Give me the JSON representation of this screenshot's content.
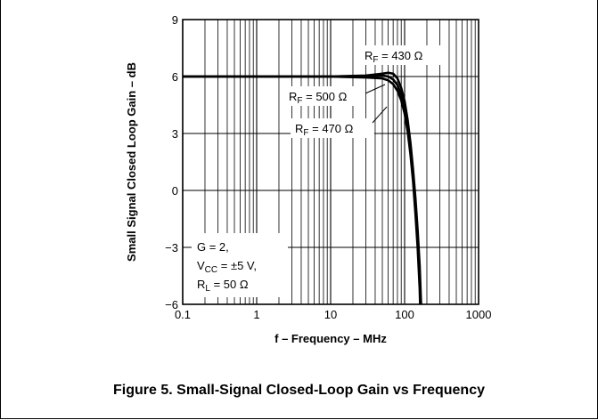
{
  "figure_caption": "Figure 5. Small-Signal Closed-Loop Gain vs Frequency",
  "colors": {
    "curve": "#000000",
    "grid": "#000000",
    "background": "#ffffff"
  },
  "chart_data": {
    "type": "line",
    "title": "",
    "xlabel": "f – Frequency – MHz",
    "ylabel": "Small Signal Closed Loop Gain – dB",
    "xscale": "log",
    "xlim": [
      0.1,
      1000
    ],
    "ylim": [
      -6,
      9
    ],
    "grid": true,
    "x_ticks": [
      {
        "value": 0.1,
        "label": "0.1"
      },
      {
        "value": 1,
        "label": "1"
      },
      {
        "value": 10,
        "label": "10"
      },
      {
        "value": 100,
        "label": "100"
      },
      {
        "value": 1000,
        "label": "1000"
      }
    ],
    "y_ticks": [
      {
        "value": 9,
        "label": "9"
      },
      {
        "value": 6,
        "label": "6"
      },
      {
        "value": 3,
        "label": "3"
      },
      {
        "value": 0,
        "label": "0"
      },
      {
        "value": -3,
        "label": "−3"
      },
      {
        "value": -6,
        "label": "−6"
      }
    ],
    "series": [
      {
        "name": "R_F = 430 Ω",
        "x": [
          0.1,
          1,
          10,
          30,
          50,
          60,
          70,
          80,
          90,
          100,
          110,
          120,
          130,
          140,
          150,
          160,
          167
        ],
        "y": [
          6,
          6,
          6,
          6.05,
          6.15,
          6.2,
          6.15,
          5.9,
          5.4,
          4.7,
          3.7,
          2.5,
          1.1,
          -0.4,
          -2.1,
          -4.0,
          -6
        ]
      },
      {
        "name": "R_F = 470 Ω",
        "x": [
          0.1,
          1,
          10,
          30,
          50,
          60,
          70,
          80,
          90,
          100,
          110,
          120,
          130,
          140,
          150,
          160,
          164
        ],
        "y": [
          6,
          6,
          6,
          6.0,
          6.05,
          6.0,
          5.85,
          5.55,
          5.05,
          4.35,
          3.4,
          2.2,
          0.8,
          -0.8,
          -2.6,
          -4.6,
          -6
        ]
      },
      {
        "name": "R_F = 500 Ω",
        "x": [
          0.1,
          1,
          10,
          30,
          50,
          60,
          70,
          80,
          90,
          100,
          110,
          120,
          130,
          140,
          150,
          160,
          162
        ],
        "y": [
          6,
          6,
          6,
          5.95,
          5.9,
          5.8,
          5.6,
          5.25,
          4.75,
          4.05,
          3.1,
          1.9,
          0.5,
          -1.2,
          -3.0,
          -5.2,
          -6
        ]
      }
    ],
    "annotations": [
      {
        "main": "R",
        "sub": "F",
        "rest": " = 430 Ω"
      },
      {
        "main": "R",
        "sub": "F",
        "rest": " = 500 Ω"
      },
      {
        "main": "R",
        "sub": "F",
        "rest": " = 470 Ω"
      }
    ],
    "conditions": [
      {
        "main": "G = 2,",
        "sub": "",
        "rest": ""
      },
      {
        "main": "V",
        "sub": "CC",
        "rest": " = ±5 V,"
      },
      {
        "main": "R",
        "sub": "L",
        "rest": " = 50 Ω"
      }
    ]
  }
}
